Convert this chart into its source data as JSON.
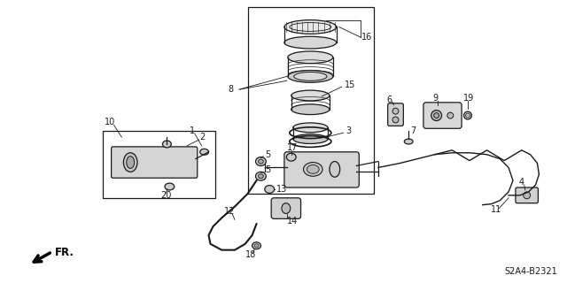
{
  "diagram_id": "S2A4-B2321",
  "bg_color": "#f5f5f0",
  "line_color": "#1a1a1a",
  "text_color": "#1a1a1a",
  "figsize": [
    6.4,
    3.2
  ],
  "dpi": 100
}
